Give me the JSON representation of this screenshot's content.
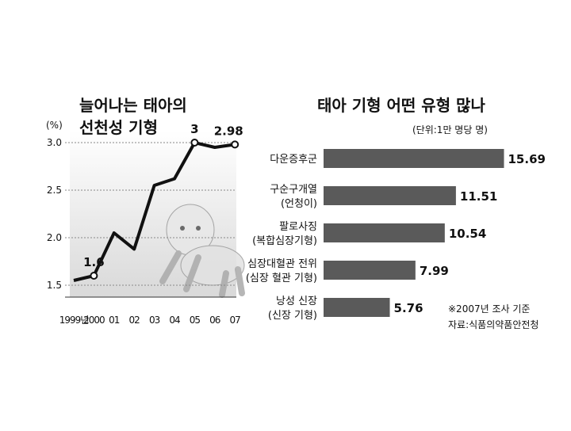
{
  "chart_data": [
    {
      "type": "line",
      "title": [
        "늘어나는 태아의",
        "선천성 기형"
      ],
      "y_label": "(%)",
      "categories": [
        "1999년",
        "2000",
        "01",
        "02",
        "03",
        "04",
        "05",
        "06",
        "07"
      ],
      "values": [
        1.55,
        1.6,
        2.05,
        1.88,
        2.55,
        2.62,
        3,
        2.95,
        2.98
      ],
      "value_labels": [
        null,
        "1.6",
        null,
        null,
        null,
        null,
        "3",
        null,
        "2.98"
      ],
      "color": "#111111",
      "ylim": [
        1.4,
        3.0
      ],
      "yticks": [
        1.5,
        {
          "value": 2,
          "label": "2.0"
        },
        2.5,
        {
          "value": 3,
          "label": "3.0"
        }
      ],
      "grid": true
    },
    {
      "type": "hbar",
      "title": "태아 기형 어떤 유형 많나",
      "subtitle": "(단위:1만 명당 명)",
      "categories": [
        [
          "다운증후군"
        ],
        [
          "구순구개열",
          "(언청이)"
        ],
        [
          "팔로사징",
          "(복합심장기형)"
        ],
        [
          "심장대혈관 전위",
          "(심장 혈관 기형)"
        ],
        [
          "낭성 신장",
          "(신장 기형)"
        ]
      ],
      "values": [
        15.69,
        11.51,
        10.54,
        7.99,
        5.76
      ],
      "color": "#5a5a5a",
      "note": "※2007년 조사 기준",
      "source": "자료:식품의약품안전청"
    }
  ]
}
